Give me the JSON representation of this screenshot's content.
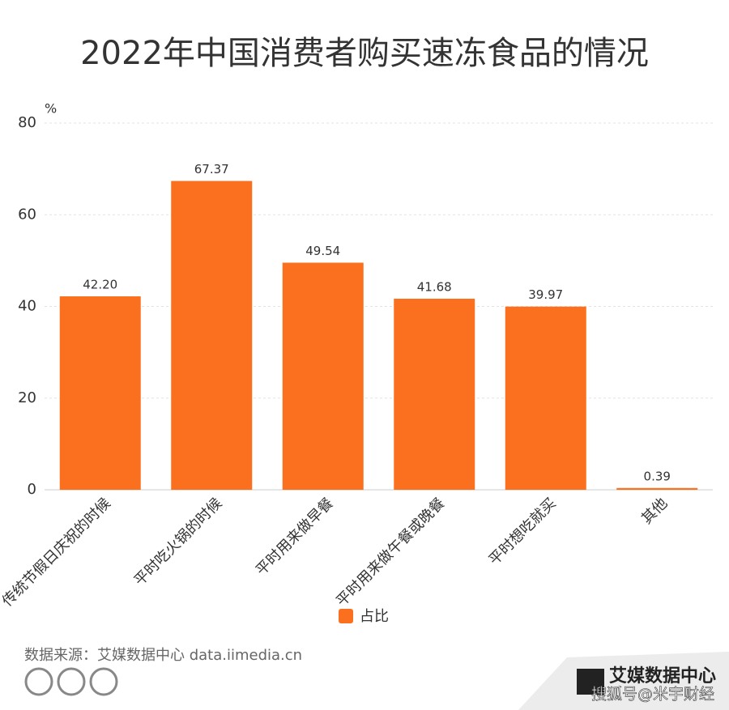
{
  "chart_data": {
    "type": "bar",
    "title": "2022年中国消费者购买速冻食品的情况",
    "y_unit": "%",
    "categories": [
      "传统节假日庆祝的时候",
      "平时吃火锅的时候",
      "平时用来做早餐",
      "平时用来做午餐或晚餐",
      "平时想吃就买",
      "其他"
    ],
    "series": [
      {
        "name": "占比",
        "color": "#fa701e",
        "values": [
          42.2,
          67.37,
          49.54,
          41.68,
          39.97,
          0.39
        ],
        "value_labels": [
          "42.20",
          "67.37",
          "49.54",
          "41.68",
          "39.97",
          "0.39"
        ]
      }
    ],
    "ylim": [
      0,
      80
    ],
    "yticks": [
      0,
      20,
      40,
      60,
      80
    ],
    "grid": true,
    "source": "数据来源：艾媒数据中心 data.iimedia.cn",
    "logo": "艾媒数据中心",
    "watermark": "搜狐号@米宇财经"
  }
}
